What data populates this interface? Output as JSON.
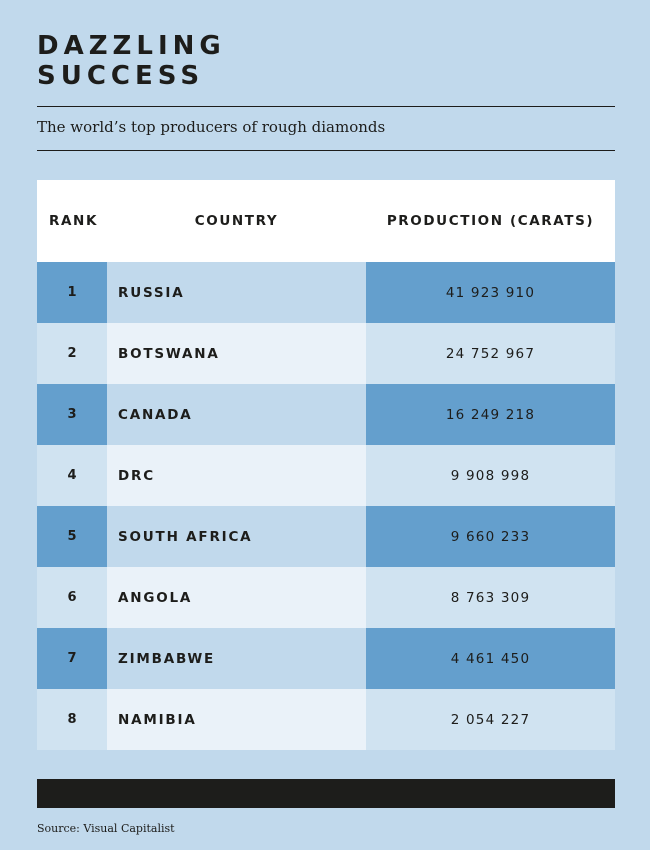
{
  "title_line1": "DAZZLING",
  "title_line2": "SUCCESS",
  "subtitle": "The world’s top producers of rough diamonds",
  "headers": {
    "rank": "RANK",
    "country": "COUNTRY",
    "production": "PRODUCTION (CARATS)"
  },
  "rows": [
    {
      "rank": "1",
      "country": "RUSSIA",
      "production": "41 923 910"
    },
    {
      "rank": "2",
      "country": "BOTSWANA",
      "production": "24 752 967"
    },
    {
      "rank": "3",
      "country": "CANADA",
      "production": "16 249 218"
    },
    {
      "rank": "4",
      "country": "DRC",
      "production": "9 908 998"
    },
    {
      "rank": "5",
      "country": "SOUTH AFRICA",
      "production": "9 660 233"
    },
    {
      "rank": "6",
      "country": "ANGOLA",
      "production": "8 763 309"
    },
    {
      "rank": "7",
      "country": "ZIMBABWE",
      "production": "4 461 450"
    },
    {
      "rank": "8",
      "country": "NAMIBIA",
      "production": "2 054 227"
    }
  ],
  "source": "Source: Visual Capitalist",
  "colors": {
    "background": "#c1d9ec",
    "accent": "#649fcd",
    "light": "#d0e3f1",
    "lighter": "#eaf2f9",
    "ink": "#1d1d1b"
  }
}
